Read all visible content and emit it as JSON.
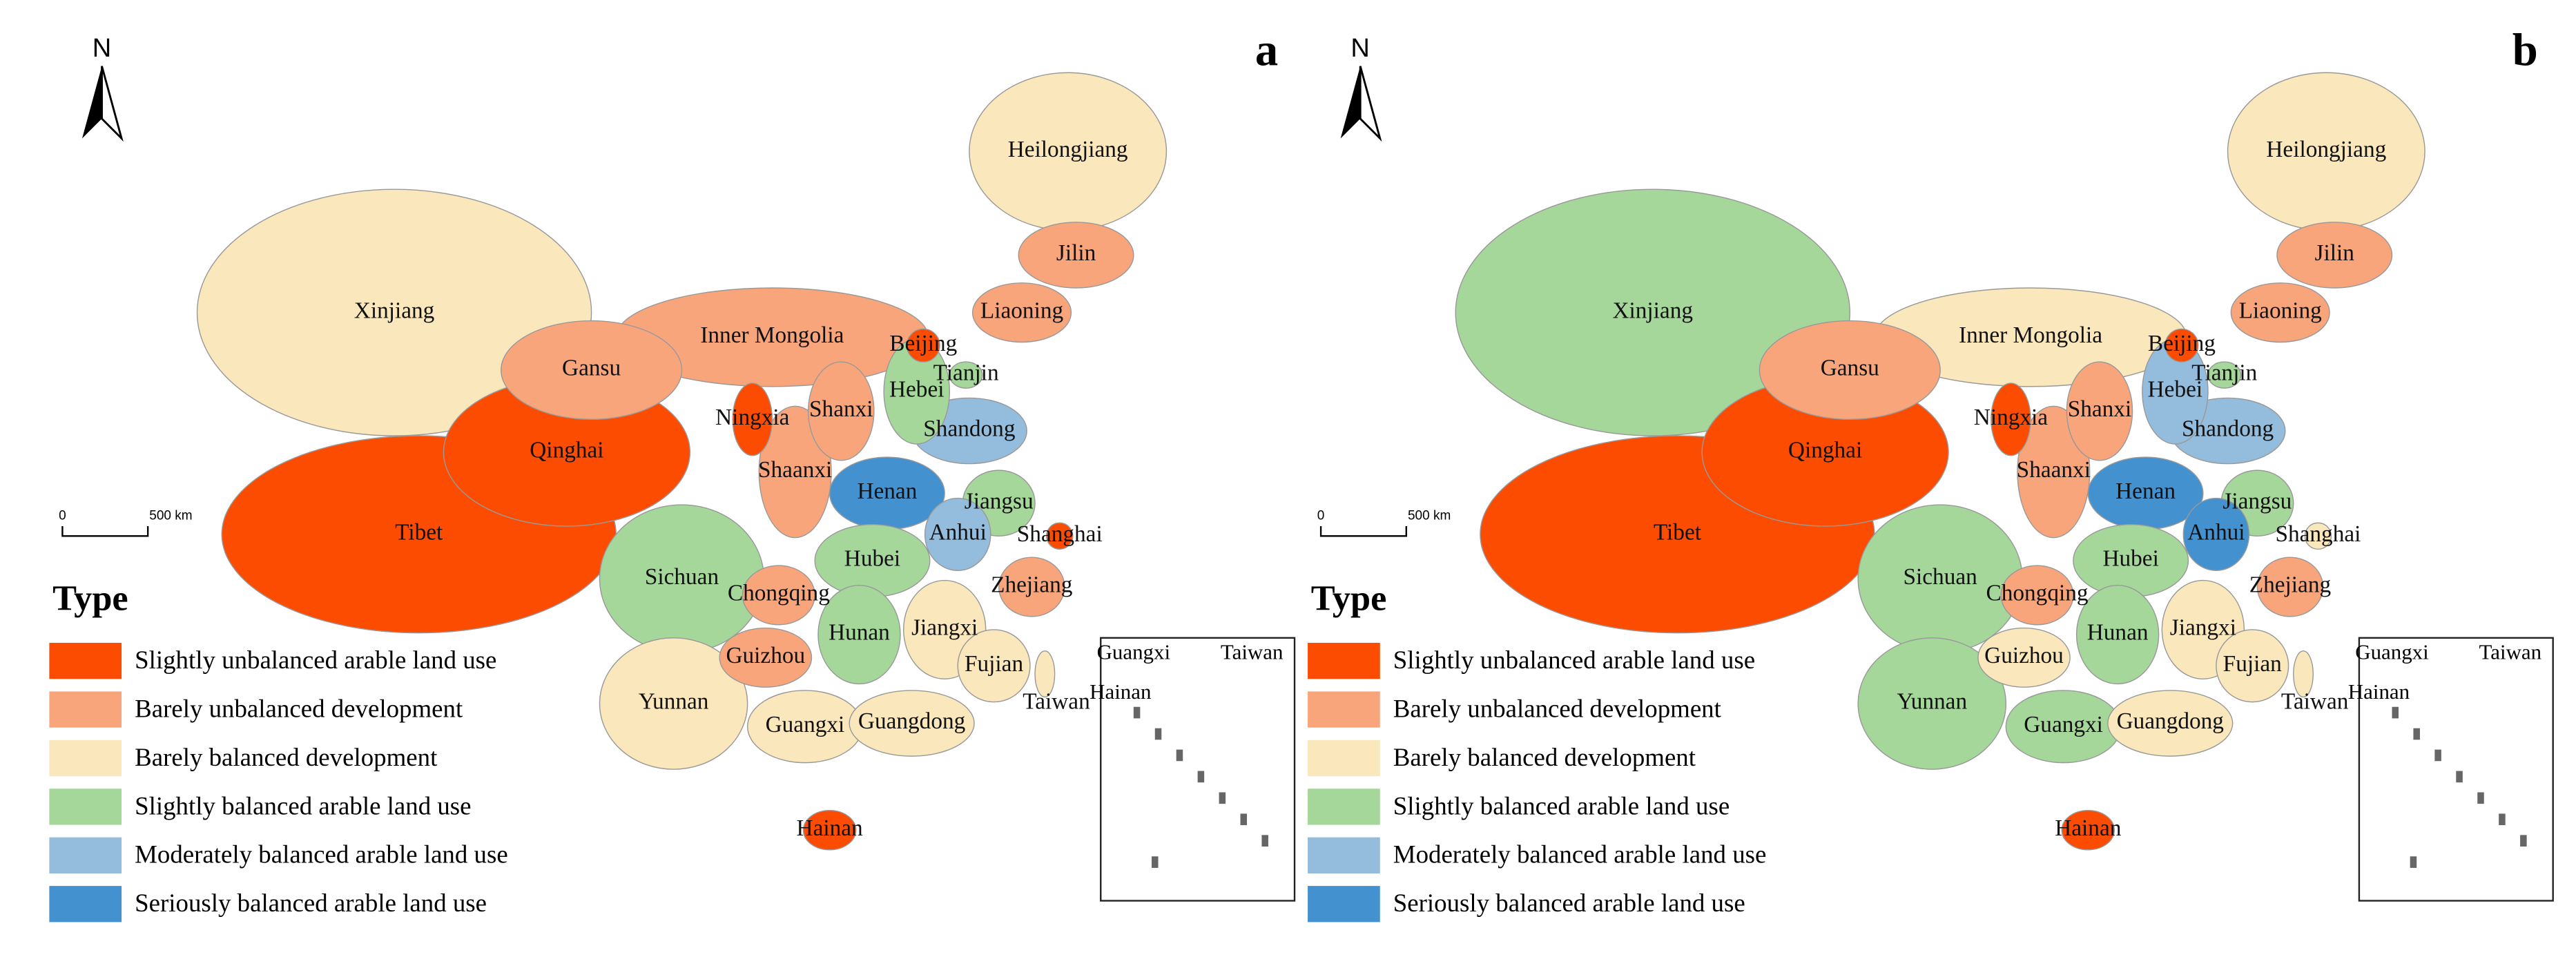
{
  "legend": {
    "title": "Type",
    "items": [
      {
        "label": "Slightly unbalanced arable land use",
        "color": "#fc4c02"
      },
      {
        "label": "Barely unbalanced development",
        "color": "#f9a57c"
      },
      {
        "label": "Barely balanced development",
        "color": "#fbe7bc"
      },
      {
        "label": "Slightly balanced arable land use",
        "color": "#a5d79a"
      },
      {
        "label": "Moderately balanced arable land use",
        "color": "#94bcdc"
      },
      {
        "label": "Seriously balanced arable land use",
        "color": "#4391cf"
      }
    ]
  },
  "panels": [
    {
      "label": "a",
      "north": "N",
      "scale": {
        "start": "0",
        "end": "500 km"
      },
      "provinces": [
        {
          "name": "Heilongjiang",
          "class": 2
        },
        {
          "name": "Jilin",
          "class": 1
        },
        {
          "name": "Liaoning",
          "class": 1
        },
        {
          "name": "Xinjiang",
          "class": 2
        },
        {
          "name": "Gansu",
          "class": 1
        },
        {
          "name": "Inner Mongolia",
          "class": 1
        },
        {
          "name": "Beijing",
          "class": 0
        },
        {
          "name": "Tianjin",
          "class": 3
        },
        {
          "name": "Hebei",
          "class": 3
        },
        {
          "name": "Ningxia",
          "class": 0
        },
        {
          "name": "Shanxi",
          "class": 1
        },
        {
          "name": "Shandong",
          "class": 4
        },
        {
          "name": "Qinghai",
          "class": 0
        },
        {
          "name": "Shaanxi",
          "class": 1
        },
        {
          "name": "Henan",
          "class": 5
        },
        {
          "name": "Jiangsu",
          "class": 3
        },
        {
          "name": "Tibet",
          "class": 0
        },
        {
          "name": "Anhui",
          "class": 4
        },
        {
          "name": "Shanghai",
          "class": 0
        },
        {
          "name": "Sichuan",
          "class": 3
        },
        {
          "name": "Chongqing",
          "class": 1
        },
        {
          "name": "Hubei",
          "class": 3
        },
        {
          "name": "Zhejiang",
          "class": 1
        },
        {
          "name": "Hunan",
          "class": 3
        },
        {
          "name": "Jiangxi",
          "class": 2
        },
        {
          "name": "Guizhou",
          "class": 1
        },
        {
          "name": "Fujian",
          "class": 2
        },
        {
          "name": "Yunnan",
          "class": 2
        },
        {
          "name": "Guangxi",
          "class": 2
        },
        {
          "name": "Guangdong",
          "class": 2
        },
        {
          "name": "Taiwan",
          "class": 2
        },
        {
          "name": "Hainan",
          "class": 0
        }
      ],
      "inset": [
        "Guangxi",
        "Taiwan",
        "Hainan"
      ]
    },
    {
      "label": "b",
      "north": "N",
      "scale": {
        "start": "0",
        "end": "500 km"
      },
      "provinces": [
        {
          "name": "Heilongjiang",
          "class": 2
        },
        {
          "name": "Jilin",
          "class": 1
        },
        {
          "name": "Liaoning",
          "class": 1
        },
        {
          "name": "Xinjiang",
          "class": 3
        },
        {
          "name": "Gansu",
          "class": 1
        },
        {
          "name": "Inner Mongolia",
          "class": 2
        },
        {
          "name": "Beijing",
          "class": 0
        },
        {
          "name": "Tianjin",
          "class": 3
        },
        {
          "name": "Hebei",
          "class": 4
        },
        {
          "name": "Ningxia",
          "class": 0
        },
        {
          "name": "Shanxi",
          "class": 1
        },
        {
          "name": "Shandong",
          "class": 4
        },
        {
          "name": "Qinghai",
          "class": 0
        },
        {
          "name": "Shaanxi",
          "class": 1
        },
        {
          "name": "Henan",
          "class": 5
        },
        {
          "name": "Jiangsu",
          "class": 3
        },
        {
          "name": "Tibet",
          "class": 0
        },
        {
          "name": "Anhui",
          "class": 5
        },
        {
          "name": "Shanghai",
          "class": 2
        },
        {
          "name": "Sichuan",
          "class": 3
        },
        {
          "name": "Chongqing",
          "class": 1
        },
        {
          "name": "Hubei",
          "class": 3
        },
        {
          "name": "Zhejiang",
          "class": 1
        },
        {
          "name": "Hunan",
          "class": 3
        },
        {
          "name": "Jiangxi",
          "class": 2
        },
        {
          "name": "Guizhou",
          "class": 2
        },
        {
          "name": "Fujian",
          "class": 2
        },
        {
          "name": "Yunnan",
          "class": 3
        },
        {
          "name": "Guangxi",
          "class": 3
        },
        {
          "name": "Guangdong",
          "class": 2
        },
        {
          "name": "Taiwan",
          "class": 2
        },
        {
          "name": "Hainan",
          "class": 0
        }
      ],
      "inset": [
        "Guangxi",
        "Taiwan",
        "Hainan"
      ]
    }
  ]
}
